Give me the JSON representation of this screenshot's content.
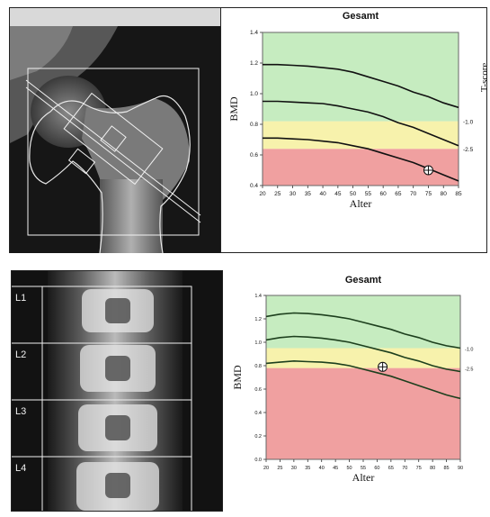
{
  "hip_panel": {
    "chart_data": {
      "type": "line",
      "title": "Gesamt",
      "xlabel": "Alter",
      "ylabel": "BMD",
      "y2label": "T-score",
      "xlim": [
        20,
        85
      ],
      "ylim": [
        0.4,
        1.4
      ],
      "x_ticks": [
        "20",
        "25",
        "30",
        "35",
        "40",
        "45",
        "50",
        "55",
        "60",
        "65",
        "70",
        "75",
        "80",
        "85"
      ],
      "y_ticks": [
        "0.4",
        "0.6",
        "0.8",
        "1.0",
        "1.2",
        "1.4"
      ],
      "t_score_labels": [
        "-1.0",
        "-2.5"
      ],
      "bands": [
        {
          "color": "#f0a0a0",
          "from": 0.4,
          "to": 0.64
        },
        {
          "color": "#f7f2ac",
          "from": 0.64,
          "to": 0.82
        },
        {
          "color": "#c6ecc0",
          "from": 0.82,
          "to": 1.4
        }
      ],
      "series": [
        {
          "x": [
            20,
            25,
            30,
            35,
            40,
            45,
            50,
            55,
            60,
            65,
            70,
            75,
            80,
            85
          ],
          "y": [
            1.19,
            1.19,
            1.185,
            1.18,
            1.17,
            1.16,
            1.14,
            1.11,
            1.08,
            1.05,
            1.01,
            0.98,
            0.94,
            0.91
          ]
        },
        {
          "x": [
            20,
            25,
            30,
            35,
            40,
            45,
            50,
            55,
            60,
            65,
            70,
            75,
            80,
            85
          ],
          "y": [
            0.95,
            0.95,
            0.945,
            0.94,
            0.935,
            0.92,
            0.9,
            0.88,
            0.85,
            0.81,
            0.78,
            0.74,
            0.7,
            0.66
          ]
        },
        {
          "x": [
            20,
            25,
            30,
            35,
            40,
            45,
            50,
            55,
            60,
            65,
            70,
            75,
            80,
            85
          ],
          "y": [
            0.71,
            0.71,
            0.705,
            0.7,
            0.69,
            0.68,
            0.66,
            0.64,
            0.61,
            0.58,
            0.55,
            0.51,
            0.47,
            0.43
          ]
        }
      ],
      "patient_point": {
        "x": 75,
        "y": 0.5
      }
    }
  },
  "spine_panel": {
    "vertebra_labels": [
      "L1",
      "L2",
      "L3",
      "L4"
    ],
    "chart_data": {
      "type": "line",
      "title": "Gesamt",
      "xlabel": "Alter",
      "ylabel": "BMD",
      "xlim": [
        20,
        90
      ],
      "ylim": [
        0,
        1.4
      ],
      "x_ticks": [
        "20",
        "25",
        "30",
        "35",
        "40",
        "45",
        "50",
        "55",
        "60",
        "65",
        "70",
        "75",
        "80",
        "85",
        "90"
      ],
      "y_ticks": [
        "0.0",
        "0.2",
        "0.4",
        "0.6",
        "0.8",
        "1.0",
        "1.2",
        "1.4"
      ],
      "t_score_labels": [
        "-1.0",
        "-2.5"
      ],
      "bands": [
        {
          "color": "#f0a0a0",
          "from": 0,
          "to": 0.78
        },
        {
          "color": "#f7f2ac",
          "from": 0.78,
          "to": 0.95
        },
        {
          "color": "#c6ecc0",
          "from": 0.95,
          "to": 1.4
        }
      ],
      "series": [
        {
          "x": [
            20,
            25,
            30,
            35,
            40,
            45,
            50,
            55,
            60,
            65,
            70,
            75,
            80,
            85,
            90
          ],
          "y": [
            1.22,
            1.24,
            1.25,
            1.245,
            1.235,
            1.22,
            1.2,
            1.17,
            1.14,
            1.11,
            1.07,
            1.04,
            1.0,
            0.97,
            0.95
          ]
        },
        {
          "x": [
            20,
            25,
            30,
            35,
            40,
            45,
            50,
            55,
            60,
            65,
            70,
            75,
            80,
            85,
            90
          ],
          "y": [
            1.02,
            1.04,
            1.05,
            1.045,
            1.035,
            1.02,
            1.0,
            0.97,
            0.94,
            0.91,
            0.87,
            0.84,
            0.8,
            0.77,
            0.75
          ]
        },
        {
          "x": [
            20,
            25,
            30,
            35,
            40,
            45,
            50,
            55,
            60,
            65,
            70,
            75,
            80,
            85,
            90
          ],
          "y": [
            0.82,
            0.83,
            0.84,
            0.835,
            0.83,
            0.82,
            0.8,
            0.77,
            0.74,
            0.71,
            0.67,
            0.63,
            0.59,
            0.55,
            0.52
          ]
        }
      ],
      "patient_point": {
        "x": 62,
        "y": 0.79
      }
    }
  }
}
